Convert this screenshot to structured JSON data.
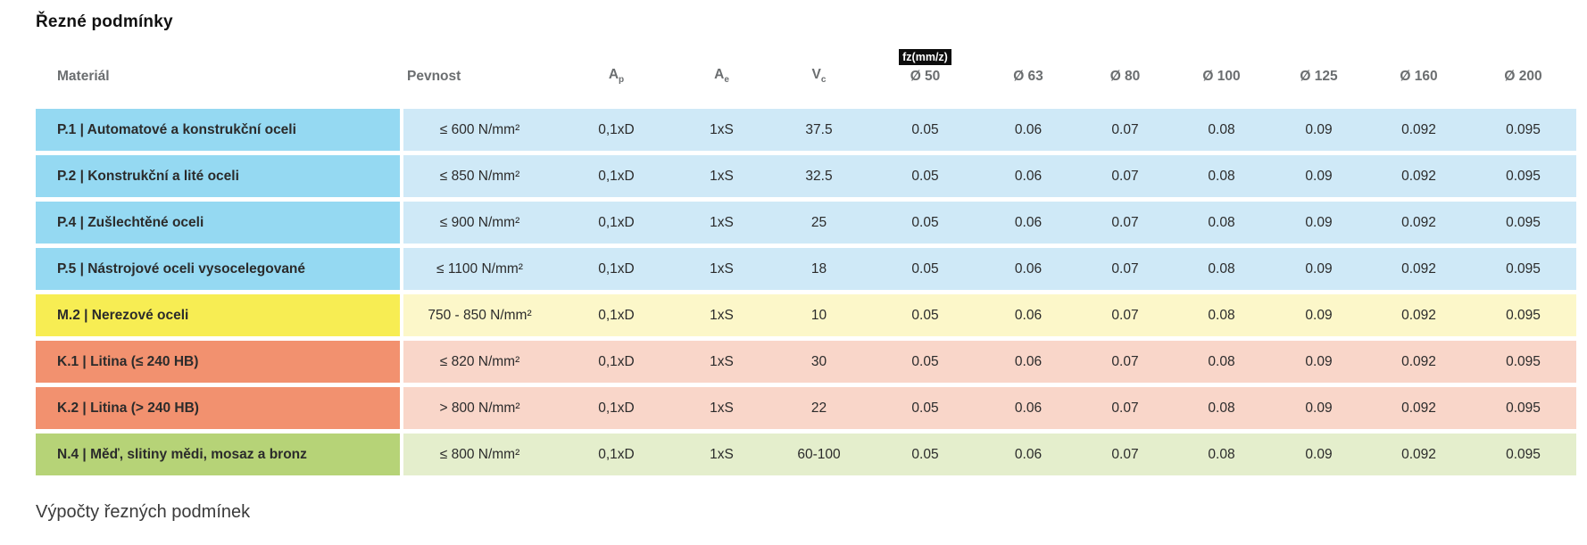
{
  "page": {
    "title": "Řezné podmínky",
    "footer_title": "Výpočty řezných podmínek"
  },
  "table": {
    "headers": {
      "material": "Materiál",
      "pevnost": "Pevnost",
      "ap": {
        "base": "A",
        "sub": "p"
      },
      "ae": {
        "base": "A",
        "sub": "e"
      },
      "vc": {
        "base": "V",
        "sub": "c"
      },
      "fz_badge": "fz(mm/z)",
      "diameters": [
        "Ø 50",
        "Ø 63",
        "Ø 80",
        "Ø 100",
        "Ø 125",
        "Ø 160",
        "Ø 200"
      ]
    },
    "rows": [
      {
        "material": "P.1 | Automatové a konstrukční oceli",
        "pevnost": "≤ 600 N/mm²",
        "ap": "0,1xD",
        "ae": "1xS",
        "vc": "37.5",
        "fz": [
          "0.05",
          "0.06",
          "0.07",
          "0.08",
          "0.09",
          "0.092",
          "0.095"
        ],
        "color_group": "blue"
      },
      {
        "material": "P.2 | Konstrukční a lité oceli",
        "pevnost": "≤ 850 N/mm²",
        "ap": "0,1xD",
        "ae": "1xS",
        "vc": "32.5",
        "fz": [
          "0.05",
          "0.06",
          "0.07",
          "0.08",
          "0.09",
          "0.092",
          "0.095"
        ],
        "color_group": "blue"
      },
      {
        "material": "P.4 | Zušlechtěné oceli",
        "pevnost": "≤ 900 N/mm²",
        "ap": "0,1xD",
        "ae": "1xS",
        "vc": "25",
        "fz": [
          "0.05",
          "0.06",
          "0.07",
          "0.08",
          "0.09",
          "0.092",
          "0.095"
        ],
        "color_group": "blue"
      },
      {
        "material": "P.5 | Nástrojové oceli vysocelegované",
        "pevnost": "≤ 1100 N/mm²",
        "ap": "0,1xD",
        "ae": "1xS",
        "vc": "18",
        "fz": [
          "0.05",
          "0.06",
          "0.07",
          "0.08",
          "0.09",
          "0.092",
          "0.095"
        ],
        "color_group": "blue"
      },
      {
        "material": "M.2 | Nerezové oceli",
        "pevnost": "750 - 850 N/mm²",
        "ap": "0,1xD",
        "ae": "1xS",
        "vc": "10",
        "fz": [
          "0.05",
          "0.06",
          "0.07",
          "0.08",
          "0.09",
          "0.092",
          "0.095"
        ],
        "color_group": "yellow"
      },
      {
        "material": "K.1 | Litina (≤ 240 HB)",
        "pevnost": "≤ 820 N/mm²",
        "ap": "0,1xD",
        "ae": "1xS",
        "vc": "30",
        "fz": [
          "0.05",
          "0.06",
          "0.07",
          "0.08",
          "0.09",
          "0.092",
          "0.095"
        ],
        "color_group": "salmon"
      },
      {
        "material": "K.2 | Litina (> 240 HB)",
        "pevnost": "> 800 N/mm²",
        "ap": "0,1xD",
        "ae": "1xS",
        "vc": "22",
        "fz": [
          "0.05",
          "0.06",
          "0.07",
          "0.08",
          "0.09",
          "0.092",
          "0.095"
        ],
        "color_group": "salmon"
      },
      {
        "material": "N.4 | Měď, slitiny mědi, mosaz a bronz",
        "pevnost": "≤ 800 N/mm²",
        "ap": "0,1xD",
        "ae": "1xS",
        "vc": "60-100",
        "fz": [
          "0.05",
          "0.06",
          "0.07",
          "0.08",
          "0.09",
          "0.092",
          "0.095"
        ],
        "color_group": "green"
      }
    ],
    "colors": {
      "blue": {
        "label": "#95d9f2",
        "row": "#cfe9f7"
      },
      "yellow": {
        "label": "#f7ed53",
        "row": "#fcf7c9"
      },
      "salmon": {
        "label": "#f2916f",
        "row": "#f9d6c9"
      },
      "green": {
        "label": "#b6d377",
        "row": "#e4eecc"
      },
      "badge_bg": "#0d0d0d",
      "badge_text": "#ffffff",
      "header_text": "#6b6e70"
    }
  }
}
